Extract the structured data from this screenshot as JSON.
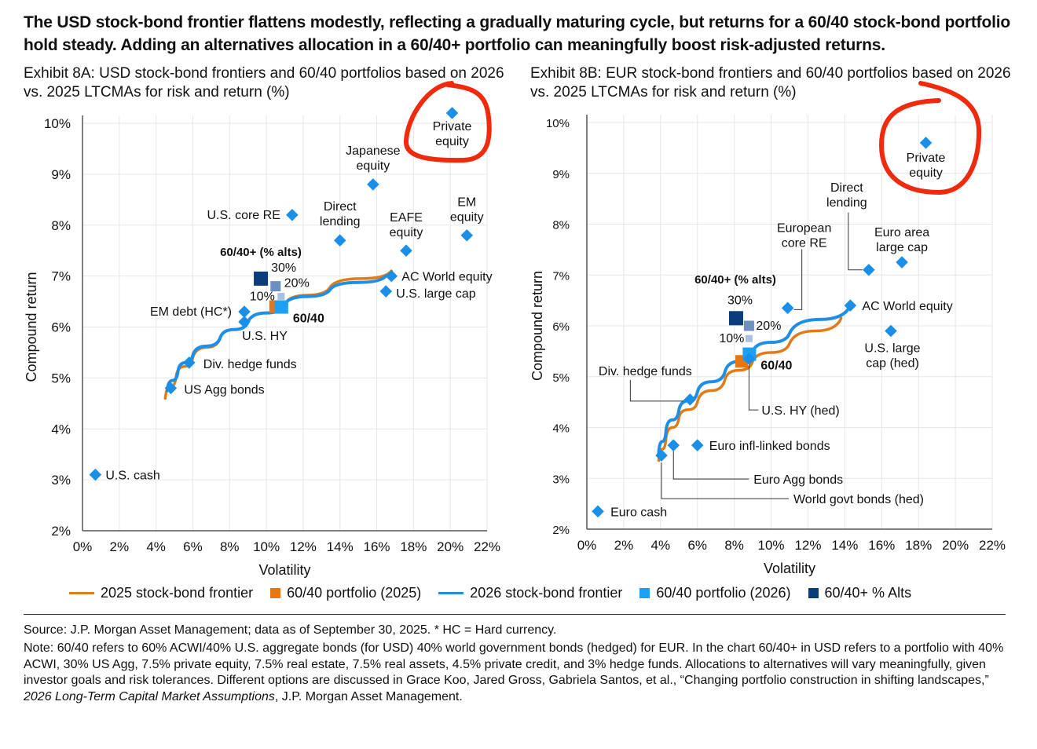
{
  "headline": "The USD stock-bond frontier flattens modestly, reflecting a gradually maturing cycle, but returns for a 60/40 stock-bond portfolio hold steady. Adding an alternatives allocation in a 60/40+ portfolio can meaningfully boost risk-adjusted returns.",
  "exhibit_a_title": "Exhibit 8A: USD stock-bond frontiers and 60/40 portfolios based on 2026 vs. 2025 LTCMAs for risk and return (%)",
  "exhibit_b_title": "Exhibit 8B: EUR stock-bond frontiers and 60/40 portfolios based on 2026 vs. 2025 LTCMAs for risk and return (%)",
  "legend": [
    {
      "label": "2025 stock-bond frontier",
      "kind": "line",
      "color": "#e07b1a"
    },
    {
      "label": "60/40 portfolio (2025)",
      "kind": "square",
      "color": "#e8760e"
    },
    {
      "label": "2026 stock-bond frontier",
      "kind": "line",
      "color": "#1f8fe6"
    },
    {
      "label": "60/40 portfolio (2026)",
      "kind": "square",
      "color": "#1aa0f5"
    },
    {
      "label": "60/40+ % Alts",
      "kind": "square",
      "color": "#0b3d7a"
    }
  ],
  "source": "Source: J.P. Morgan Asset Management; data as of September 30, 2025. * HC = Hard currency.",
  "note_main": "Note: 60/40 refers to 60% ACWI/40% U.S. aggregate bonds (for USD) 40% world government bonds (hedged) for EUR. In the chart 60/40+ in USD refers to a portfolio with 40% ACWI, 30% US Agg, 7.5% private equity, 7.5% real estate, 7.5% real assets, 4.5% private credit, and 3% hedge funds. Allocations to alternatives will vary meaningfully, given investor goals and risk tolerances. Different options are discussed in Grace Koo, Jared Gross, Gabriela Santos, et al., “Changing portfolio construction in shifting landscapes,” ",
  "note_italic": "2026 Long-Term Capital Market Assumptions",
  "note_end": ", J.P. Morgan Asset Management.",
  "chart_data": [
    {
      "type": "scatter",
      "title": "Exhibit 8A: USD stock-bond frontiers and 60/40 portfolios",
      "xlabel": "Volatility",
      "ylabel": "Compound return",
      "xlim": [
        0,
        22
      ],
      "ylim": [
        2,
        10
      ],
      "xticks": [
        "0%",
        "2%",
        "4%",
        "6%",
        "8%",
        "10%",
        "12%",
        "14%",
        "16%",
        "18%",
        "20%",
        "22%"
      ],
      "yticks": [
        "2%",
        "3%",
        "4%",
        "5%",
        "6%",
        "7%",
        "8%",
        "9%",
        "10%"
      ],
      "grid": true,
      "assets": [
        {
          "label": "Private equity",
          "x": 20.1,
          "y": 10.2
        },
        {
          "label": "Japanese equity",
          "x": 15.8,
          "y": 8.8
        },
        {
          "label": "U.S. core RE",
          "x": 11.4,
          "y": 8.2
        },
        {
          "label": "Direct lending",
          "x": 14.0,
          "y": 7.7
        },
        {
          "label": "EAFE equity",
          "x": 17.6,
          "y": 7.5
        },
        {
          "label": "EM equity",
          "x": 20.9,
          "y": 7.8
        },
        {
          "label": "AC World equity",
          "x": 16.8,
          "y": 7.0
        },
        {
          "label": "U.S. large cap",
          "x": 16.5,
          "y": 6.7
        },
        {
          "label": "EM debt (HC*)",
          "x": 8.8,
          "y": 6.3
        },
        {
          "label": "U.S. HY",
          "x": 8.8,
          "y": 6.1
        },
        {
          "label": "Div. hedge funds",
          "x": 5.8,
          "y": 5.3
        },
        {
          "label": "US Agg bonds",
          "x": 4.8,
          "y": 4.8
        },
        {
          "label": "U.S. cash",
          "x": 0.7,
          "y": 3.1
        }
      ],
      "portfolio_2025": {
        "label": "60/40",
        "x": 10.5,
        "y": 6.4
      },
      "portfolio_2026": {
        "label": "60/40",
        "x": 10.8,
        "y": 6.4
      },
      "alts_title": "60/40+ (% alts)",
      "alts": [
        {
          "label": "30%",
          "x": 9.7,
          "y": 6.95
        },
        {
          "label": "20%",
          "x": 10.5,
          "y": 6.8
        },
        {
          "label": "10%",
          "x": 10.8,
          "y": 6.6
        }
      ],
      "series": [
        {
          "name": "2025 stock-bond frontier",
          "points": [
            [
              4.5,
              4.6
            ],
            [
              5.1,
              5.05
            ],
            [
              6,
              5.4
            ],
            [
              7.5,
              5.8
            ],
            [
              9,
              6.1
            ],
            [
              11,
              6.45
            ],
            [
              13.5,
              6.8
            ],
            [
              16.8,
              7.1
            ]
          ]
        },
        {
          "name": "2026 stock-bond frontier",
          "points": [
            [
              4.6,
              4.75
            ],
            [
              5.2,
              5.15
            ],
            [
              6,
              5.45
            ],
            [
              7.5,
              5.8
            ],
            [
              9,
              6.1
            ],
            [
              11,
              6.45
            ],
            [
              13.5,
              6.75
            ],
            [
              16.5,
              7.0
            ]
          ]
        }
      ]
    },
    {
      "type": "scatter",
      "title": "Exhibit 8B: EUR stock-bond frontiers and 60/40 portfolios",
      "xlabel": "Volatility",
      "ylabel": "Compound return",
      "xlim": [
        0,
        22
      ],
      "ylim": [
        2,
        10
      ],
      "xticks": [
        "0%",
        "2%",
        "4%",
        "6%",
        "8%",
        "10%",
        "12%",
        "14%",
        "16%",
        "18%",
        "20%",
        "22%"
      ],
      "yticks": [
        "2%",
        "3%",
        "4%",
        "5%",
        "6%",
        "7%",
        "8%",
        "9%",
        "10%"
      ],
      "grid": true,
      "assets": [
        {
          "label": "Private equity",
          "x": 18.4,
          "y": 9.6
        },
        {
          "label": "Direct lending",
          "x": 15.3,
          "y": 7.1
        },
        {
          "label": "Euro area large cap",
          "x": 17.1,
          "y": 7.25
        },
        {
          "label": "European core RE",
          "x": 10.9,
          "y": 6.35
        },
        {
          "label": "AC World equity",
          "x": 14.3,
          "y": 6.4
        },
        {
          "label": "U.S. large cap (hed)",
          "x": 16.5,
          "y": 5.9
        },
        {
          "label": "U.S. HY (hed)",
          "x": 8.8,
          "y": 5.35
        },
        {
          "label": "Div. hedge funds",
          "x": 5.6,
          "y": 4.55
        },
        {
          "label": "Euro infl-linked bonds",
          "x": 6.0,
          "y": 3.65
        },
        {
          "label": "Euro Agg bonds",
          "x": 4.7,
          "y": 3.65
        },
        {
          "label": "World govt bonds (hed)",
          "x": 4.05,
          "y": 3.45
        },
        {
          "label": "Euro cash",
          "x": 0.6,
          "y": 2.35
        }
      ],
      "portfolio_2025": {
        "label": "60/40",
        "x": 8.4,
        "y": 5.3
      },
      "portfolio_2026": {
        "label": "60/40",
        "x": 8.8,
        "y": 5.45
      },
      "alts_title": "60/40+ (% alts)",
      "alts": [
        {
          "label": "30%",
          "x": 8.1,
          "y": 6.15
        },
        {
          "label": "20%",
          "x": 8.8,
          "y": 6.0
        },
        {
          "label": "10%",
          "x": 8.8,
          "y": 5.75
        }
      ],
      "series": [
        {
          "name": "2025 stock-bond frontier",
          "points": [
            [
              3.9,
              3.35
            ],
            [
              4.3,
              3.8
            ],
            [
              5,
              4.2
            ],
            [
              6,
              4.5
            ],
            [
              7.5,
              4.95
            ],
            [
              9,
              5.3
            ],
            [
              11,
              5.65
            ],
            [
              13.8,
              6.15
            ]
          ]
        },
        {
          "name": "2026 stock-bond frontier",
          "points": [
            [
              3.9,
              3.5
            ],
            [
              4.3,
              3.95
            ],
            [
              5,
              4.35
            ],
            [
              6,
              4.7
            ],
            [
              7.5,
              5.1
            ],
            [
              9,
              5.5
            ],
            [
              11,
              5.85
            ],
            [
              14.3,
              6.4
            ]
          ]
        }
      ]
    }
  ]
}
